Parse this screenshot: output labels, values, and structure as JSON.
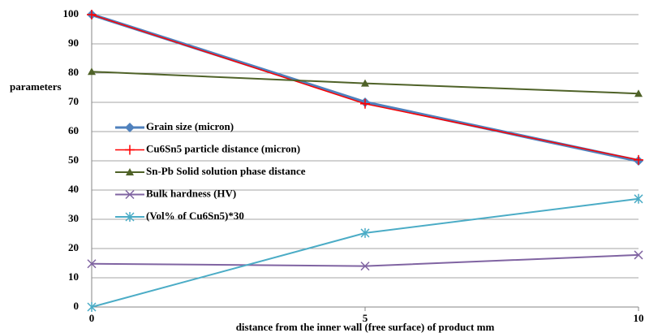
{
  "chart_data": {
    "type": "line",
    "y_label": "parameters",
    "x_label": "distance from the inner wall (free surface) of product mm",
    "x": [
      0,
      5,
      10
    ],
    "xlim": [
      0,
      10
    ],
    "xticks": [
      0,
      5,
      10
    ],
    "ylim": [
      0,
      100
    ],
    "yticks": [
      0,
      10,
      20,
      30,
      40,
      50,
      60,
      70,
      80,
      90,
      100
    ],
    "grid": true,
    "legend": "left",
    "series": [
      {
        "name": "Grain size (micron)",
        "color": "#4f81bd",
        "marker": "diamond",
        "width": 4,
        "values": [
          100,
          70,
          50
        ]
      },
      {
        "name": "Cu6Sn5 particle distance (micron)",
        "color": "#ff0000",
        "marker": "plus",
        "width": 1.5,
        "values": [
          100,
          69.5,
          50.3
        ]
      },
      {
        "name": "Sn-Pb Solid solution phase distance",
        "color": "#4f6228",
        "marker": "triangle",
        "width": 2,
        "values": [
          80.5,
          76.5,
          73
        ]
      },
      {
        "name": "Bulk hardness (HV)",
        "color": "#8064a2",
        "marker": "x",
        "width": 2,
        "values": [
          14.8,
          14,
          17.8
        ]
      },
      {
        "name": "(Vol% of Cu6Sn5)*30",
        "color": "#4bacc6",
        "marker": "star",
        "width": 2,
        "values": [
          0,
          25.3,
          37
        ]
      }
    ]
  }
}
